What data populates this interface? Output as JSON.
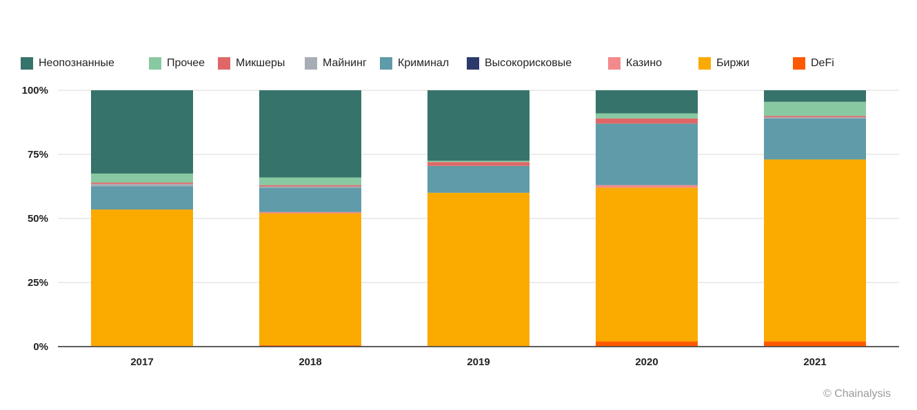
{
  "chart_data": {
    "type": "bar",
    "stacked": true,
    "percent_stacked": true,
    "categories": [
      "2017",
      "2018",
      "2019",
      "2020",
      "2021"
    ],
    "ylim": [
      0,
      100
    ],
    "yticks": [
      "0%",
      "25%",
      "50%",
      "75%",
      "100%"
    ],
    "grid": true,
    "legend_position": "top",
    "series": [
      {
        "name": "DeFi",
        "color": "#ff5a00",
        "values": [
          0,
          0.5,
          0,
          2,
          2
        ]
      },
      {
        "name": "Биржи",
        "color": "#fbaa00",
        "values": [
          53.5,
          51.5,
          60,
          60,
          71
        ]
      },
      {
        "name": "Казино",
        "color": "#f28a8c",
        "values": [
          0,
          0.5,
          0,
          1,
          0
        ]
      },
      {
        "name": "Высокорисковые",
        "color": "#2b3a6b",
        "values": [
          0,
          0,
          0,
          0,
          0
        ]
      },
      {
        "name": "Криминал",
        "color": "#5f9ba8",
        "values": [
          9,
          9.5,
          10.5,
          24,
          16
        ]
      },
      {
        "name": "Майнинг",
        "color": "#a7adb5",
        "values": [
          1,
          0.5,
          0,
          0,
          0.5
        ]
      },
      {
        "name": "Микшеры",
        "color": "#e06767",
        "values": [
          0.5,
          0.5,
          1.5,
          2,
          0.5
        ]
      },
      {
        "name": "Прочее",
        "color": "#88c9a2",
        "values": [
          3.5,
          3,
          0.5,
          2,
          5.5
        ]
      },
      {
        "name": "Неопознанные",
        "color": "#36736a",
        "values": [
          32.5,
          34,
          27.5,
          9,
          4.5
        ]
      }
    ]
  },
  "legend": [
    {
      "label": "Неопознанные",
      "color": "#36736a"
    },
    {
      "label": "Прочее",
      "color": "#88c9a2"
    },
    {
      "label": "Микшеры",
      "color": "#e06767"
    },
    {
      "label": "Майнинг",
      "color": "#a7adb5"
    },
    {
      "label": "Криминал",
      "color": "#5f9ba8"
    },
    {
      "label": "Высокорисковые",
      "color": "#2b3a6b"
    },
    {
      "label": "Казино",
      "color": "#f28a8c"
    },
    {
      "label": "Биржи",
      "color": "#fbaa00"
    },
    {
      "label": "DeFi",
      "color": "#ff5a00"
    }
  ],
  "credit": "© Chainalysis"
}
